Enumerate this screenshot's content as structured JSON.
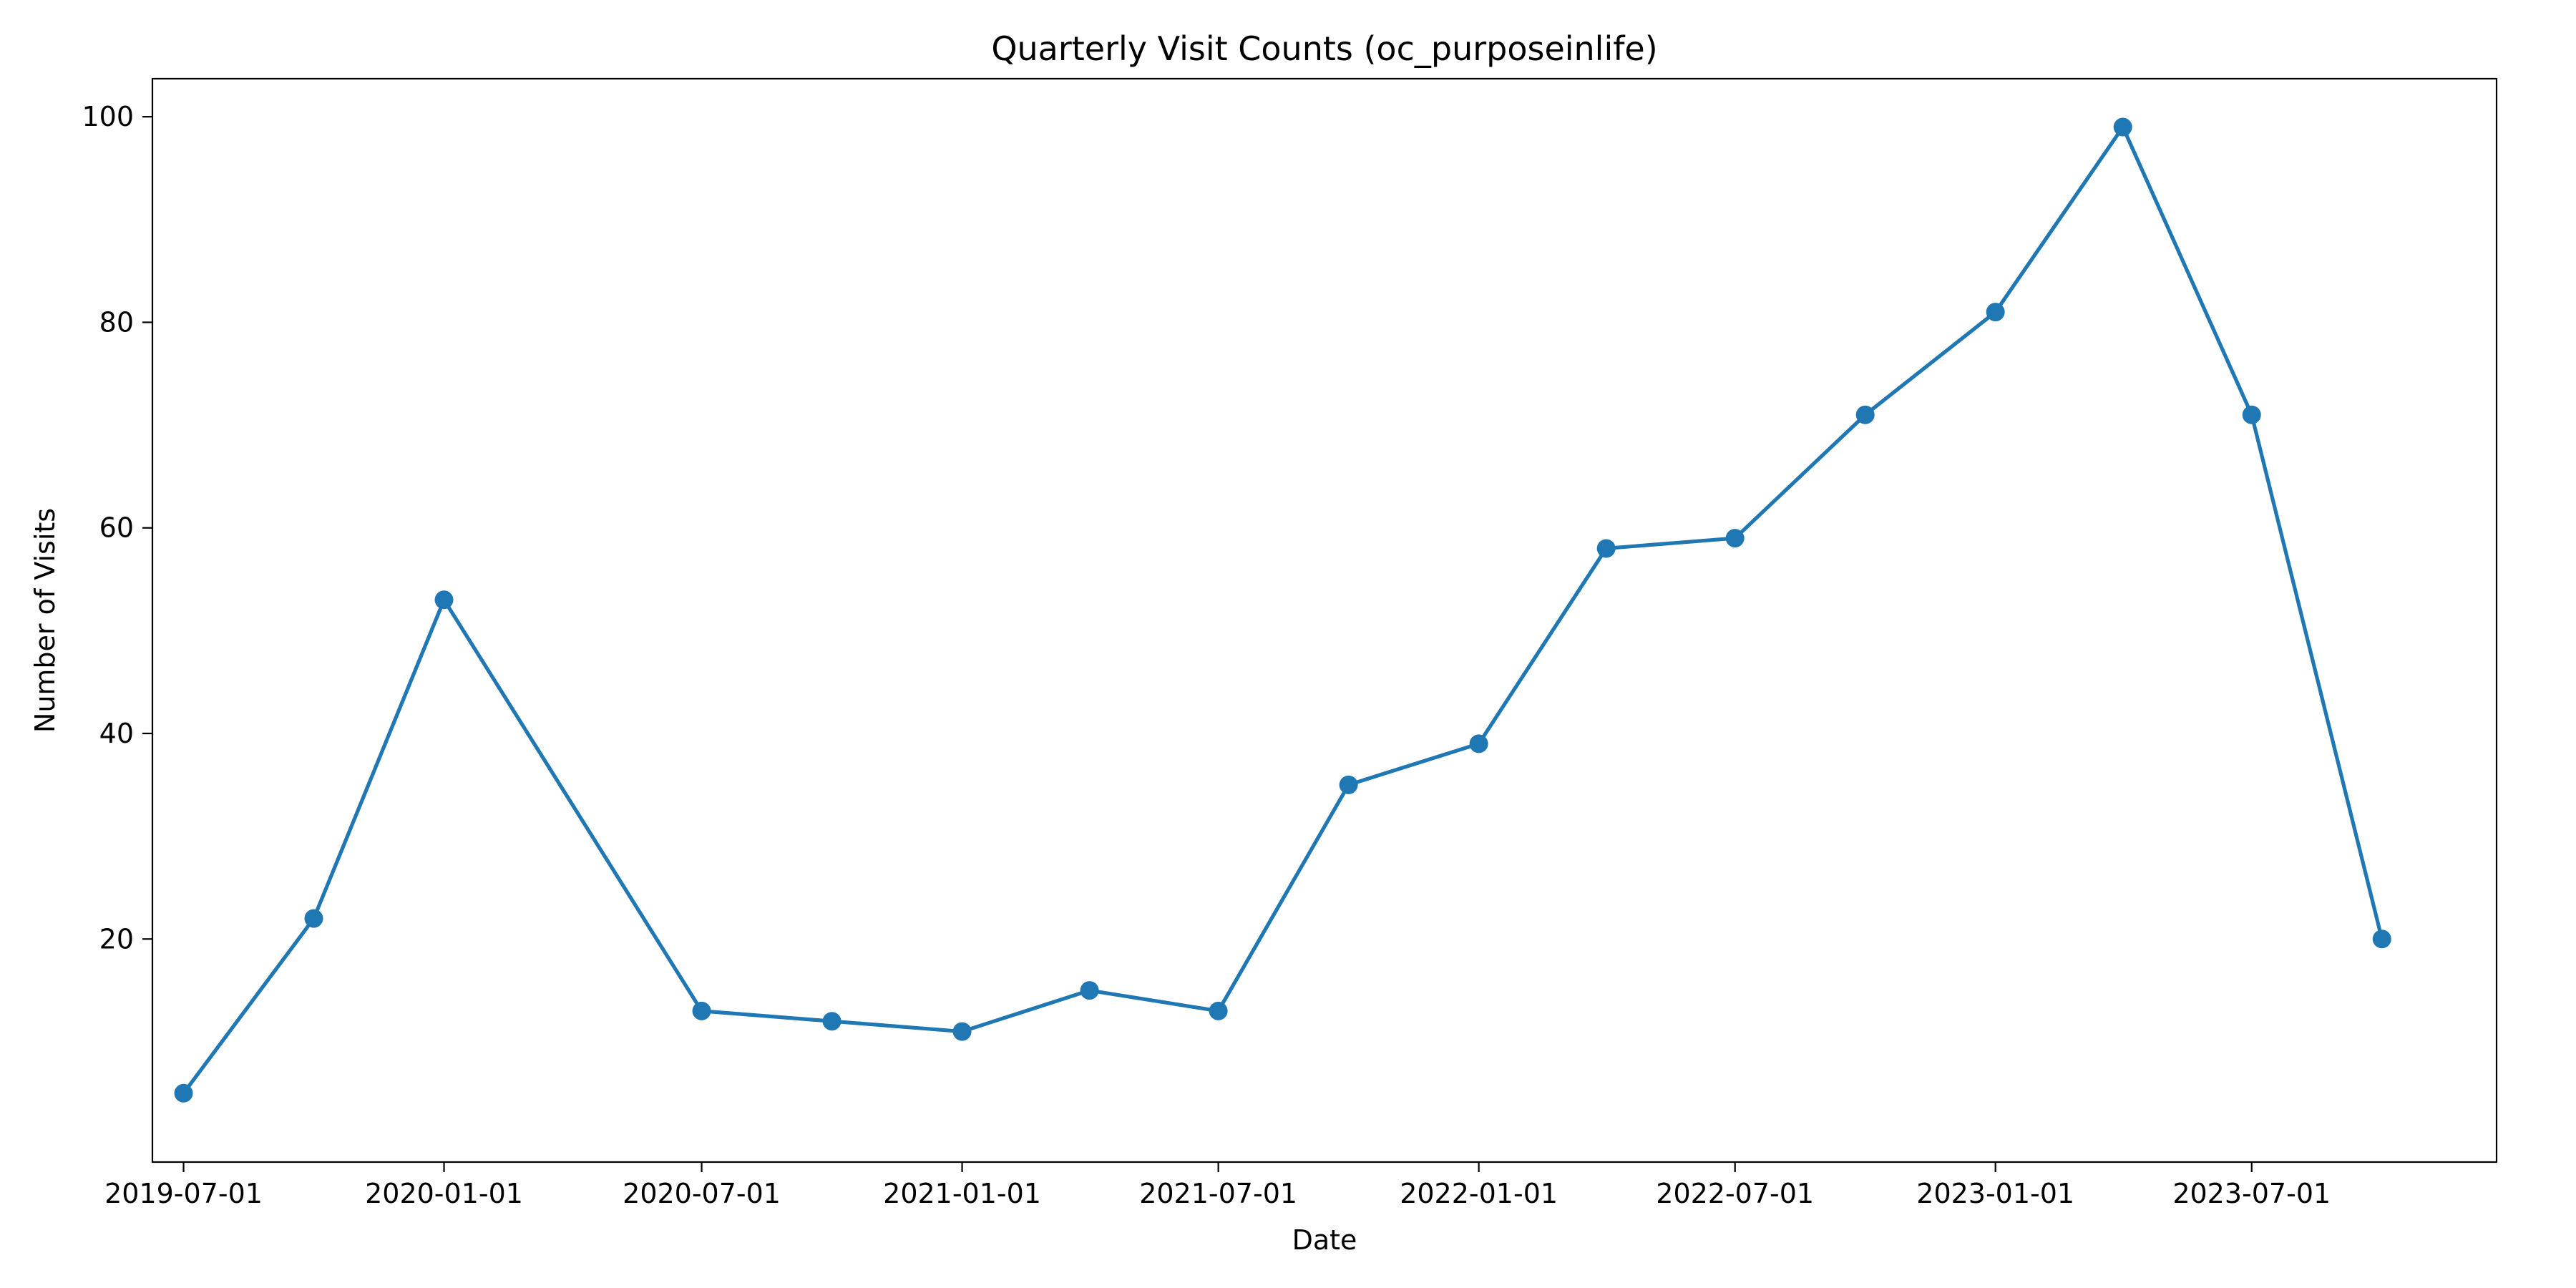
{
  "chart_data": {
    "type": "line",
    "title": "Quarterly Visit Counts (oc_purposeinlife)",
    "xlabel": "Date",
    "ylabel": "Number of Visits",
    "x_axis_type": "date",
    "xlim": [
      "2019-06-09",
      "2023-12-21"
    ],
    "ylim": [
      -1.7,
      103.7
    ],
    "x_ticks": [
      "2019-07-01",
      "2020-01-01",
      "2020-07-01",
      "2021-01-01",
      "2021-07-01",
      "2022-01-01",
      "2022-07-01",
      "2023-01-01",
      "2023-07-01"
    ],
    "y_ticks": [
      20,
      40,
      60,
      80,
      100
    ],
    "grid": false,
    "legend": "none",
    "series": [
      {
        "color": "#1f77b4",
        "marker": "circle",
        "x": [
          "2019-07-01",
          "2019-10-01",
          "2020-01-01",
          "2020-07-01",
          "2020-10-01",
          "2021-01-01",
          "2021-04-01",
          "2021-07-01",
          "2021-10-01",
          "2022-01-01",
          "2022-04-01",
          "2022-07-01",
          "2022-10-01",
          "2023-01-01",
          "2023-04-01",
          "2023-07-01",
          "2023-10-01"
        ],
        "values": [
          5,
          22,
          53,
          13,
          12,
          11,
          15,
          13,
          35,
          39,
          58,
          59,
          71,
          81,
          99,
          71,
          20
        ]
      }
    ]
  }
}
